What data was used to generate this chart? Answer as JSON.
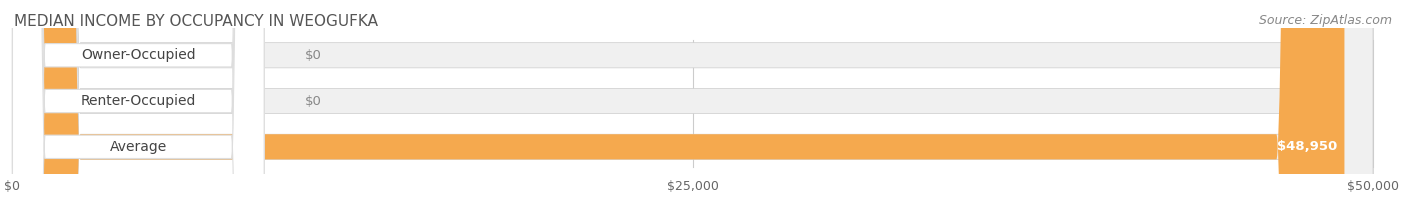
{
  "title": "MEDIAN INCOME BY OCCUPANCY IN WEOGUFKA",
  "source": "Source: ZipAtlas.com",
  "categories": [
    "Owner-Occupied",
    "Renter-Occupied",
    "Average"
  ],
  "values": [
    0,
    0,
    48950
  ],
  "max_value": 50000,
  "bar_colors": [
    "#6dcdc8",
    "#c4a8d4",
    "#f5a94e"
  ],
  "label_colors": [
    "#6dcdc8",
    "#c4a8d4",
    "#f5a94e"
  ],
  "bar_bg_color": "#f0f0f0",
  "value_labels": [
    "$0",
    "$0",
    "$48,950"
  ],
  "xtick_labels": [
    "$0",
    "$25,000",
    "$50,000"
  ],
  "xtick_values": [
    0,
    25000,
    50000
  ],
  "bar_height": 0.55,
  "bg_color": "#ffffff",
  "title_fontsize": 11,
  "source_fontsize": 9,
  "label_fontsize": 10,
  "value_fontsize": 9.5,
  "tick_fontsize": 9
}
